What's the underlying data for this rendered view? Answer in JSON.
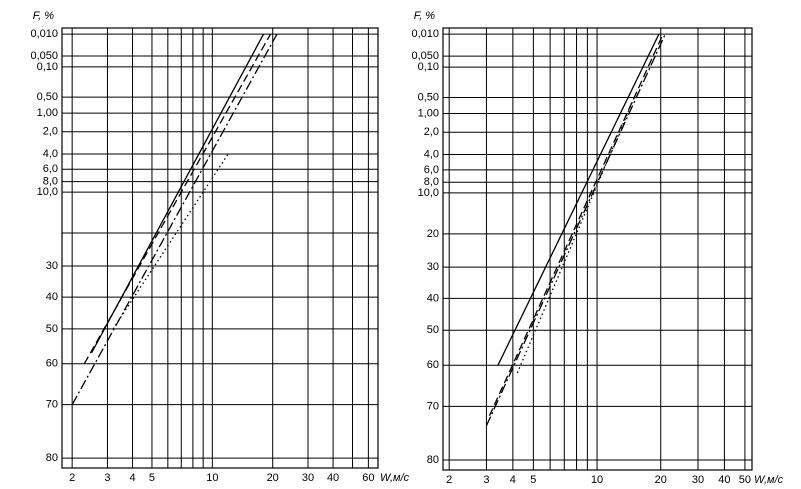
{
  "chart_data": [
    {
      "type": "line",
      "xscale": "log",
      "yscale": "weibull",
      "grid": true,
      "ylabel": "F, %",
      "xlabel": "W,м/с",
      "xlim": [
        1.78,
        67
      ],
      "ylim": [
        0.006,
        81.5
      ],
      "xticks": [
        2,
        3,
        4,
        5,
        {
          "value": 6,
          "label": null
        },
        {
          "value": 7,
          "label": null
        },
        {
          "value": 8,
          "label": null
        },
        {
          "value": 9,
          "label": null
        },
        10,
        20,
        30,
        40,
        {
          "value": 50,
          "label": null
        },
        60
      ],
      "yticks": [
        {
          "value": 0.01,
          "label": "0,010"
        },
        {
          "value": 0.05,
          "label": "0,050"
        },
        {
          "value": 0.1,
          "label": "0,10"
        },
        {
          "value": 0.5,
          "label": "0,50"
        },
        {
          "value": 1,
          "label": "1,00"
        },
        {
          "value": 2,
          "label": "2,0"
        },
        {
          "value": 4,
          "label": "4,0"
        },
        {
          "value": 6,
          "label": "6,0"
        },
        {
          "value": 8,
          "label": "8,0"
        },
        {
          "value": 10,
          "label": "10,0"
        },
        {
          "value": 20,
          "label": null
        },
        30,
        40,
        50,
        60,
        70,
        80
      ],
      "series": [
        {
          "color": "#000000",
          "dash": "solid",
          "x": [
            2.5,
            18
          ],
          "values": [
            57,
            0.01
          ]
        },
        {
          "color": "#000000",
          "dash": "dashed",
          "x": [
            2.3,
            19.5
          ],
          "values": [
            60,
            0.01
          ]
        },
        {
          "color": "#000000",
          "dash": "dashdot",
          "x": [
            2.0,
            21
          ],
          "values": [
            70,
            0.01
          ]
        },
        {
          "color": "#000000",
          "dash": "dotted",
          "x": [
            3.2,
            12
          ],
          "values": [
            50,
            4
          ]
        }
      ]
    },
    {
      "type": "line",
      "xscale": "log",
      "yscale": "weibull",
      "grid": true,
      "ylabel": "F, %",
      "xlabel": "W,м/с",
      "xlim": [
        1.87,
        54
      ],
      "ylim": [
        0.006,
        81.5
      ],
      "xticks": [
        2,
        3,
        4,
        5,
        {
          "value": 6,
          "label": null
        },
        {
          "value": 7,
          "label": null
        },
        {
          "value": 8,
          "label": null
        },
        {
          "value": 9,
          "label": null
        },
        10,
        20,
        30,
        40,
        50
      ],
      "yticks": [
        {
          "value": 0.01,
          "label": "0,010"
        },
        {
          "value": 0.05,
          "label": "0,050"
        },
        {
          "value": 0.1,
          "label": "0,10"
        },
        {
          "value": 0.5,
          "label": "0,50"
        },
        {
          "value": 1,
          "label": "1,00"
        },
        {
          "value": 2,
          "label": "2,0"
        },
        {
          "value": 4,
          "label": "4,0"
        },
        {
          "value": 6,
          "label": "6,0"
        },
        {
          "value": 8,
          "label": "8,0"
        },
        {
          "value": 10,
          "label": "10,0"
        },
        20,
        30,
        40,
        50,
        60,
        70,
        80
      ],
      "series": [
        {
          "color": "#000000",
          "dash": "solid",
          "x": [
            3.4,
            19.6
          ],
          "values": [
            60,
            0.01
          ]
        },
        {
          "color": "#000000",
          "dash": "dashed",
          "x": [
            3.1,
            20.5
          ],
          "values": [
            72,
            0.01
          ]
        },
        {
          "color": "#000000",
          "dash": "dashdot",
          "x": [
            3.0,
            21
          ],
          "values": [
            74,
            0.01
          ]
        },
        {
          "color": "#000000",
          "dash": "dotted",
          "x": [
            4.2,
            15
          ],
          "values": [
            62,
            0.5
          ]
        }
      ]
    }
  ]
}
